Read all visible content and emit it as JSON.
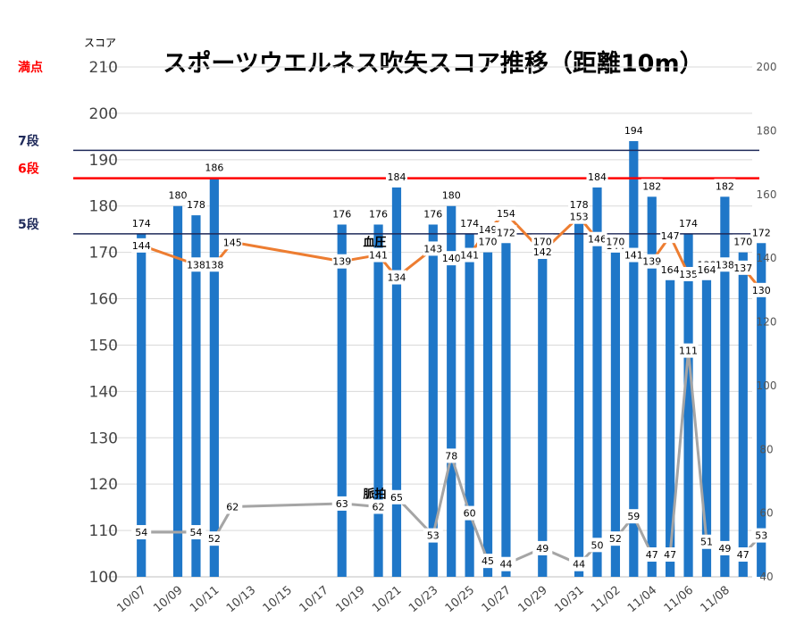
{
  "chart_data": {
    "type": "bar",
    "title": "スポーツウエルネス吹矢スコア推移（距離10m）",
    "y_axis_title": "スコア",
    "ylim": [
      100,
      210
    ],
    "y_ticks": [
      100,
      110,
      120,
      130,
      140,
      150,
      160,
      170,
      180,
      190,
      200,
      210
    ],
    "y2lim": [
      40,
      200
    ],
    "y2_ticks": [
      40,
      60,
      80,
      100,
      120,
      140,
      160,
      180,
      200
    ],
    "x_tick_labels": [
      "10/07",
      "10/09",
      "10/11",
      "10/13",
      "10/15",
      "10/17",
      "10/19",
      "10/21",
      "10/23",
      "10/25",
      "10/27",
      "10/29",
      "10/31",
      "11/02",
      "11/04",
      "11/06",
      "11/08"
    ],
    "x_start": "10/07",
    "grid": true,
    "score_series": {
      "color": "#1f77c8",
      "points": [
        {
          "x": "10/07",
          "value": 174
        },
        {
          "x": "10/09",
          "value": 180
        },
        {
          "x": "10/10",
          "value": 178
        },
        {
          "x": "10/11",
          "value": 186
        },
        {
          "x": "10/18",
          "value": 176
        },
        {
          "x": "10/20",
          "value": 176
        },
        {
          "x": "10/21",
          "value": 184
        },
        {
          "x": "10/23",
          "value": 176
        },
        {
          "x": "10/24",
          "value": 180
        },
        {
          "x": "10/25",
          "value": 174
        },
        {
          "x": "10/26",
          "value": 170
        },
        {
          "x": "10/27",
          "value": 172
        },
        {
          "x": "10/29",
          "value": 170
        },
        {
          "x": "10/31",
          "value": 178
        },
        {
          "x": "11/01",
          "value": 184
        },
        {
          "x": "11/02",
          "value": 170
        },
        {
          "x": "11/03",
          "value": 194
        },
        {
          "x": "11/04",
          "value": 182
        },
        {
          "x": "11/05",
          "value": 164
        },
        {
          "x": "11/06",
          "value": 174
        },
        {
          "x": "11/07",
          "value": 164
        },
        {
          "x": "11/08",
          "value": 182
        },
        {
          "x": "11/09",
          "value": 170
        },
        {
          "x": "11/10",
          "value": 172
        }
      ]
    },
    "blood_pressure_series": {
      "name": "血圧",
      "color": "#ed7d31",
      "points": [
        {
          "x": "10/07",
          "value": 144
        },
        {
          "x": "10/10",
          "value": 138
        },
        {
          "x": "10/11",
          "value": 138
        },
        {
          "x": "10/12",
          "value": 145
        },
        {
          "x": "10/18",
          "value": 139
        },
        {
          "x": "10/20",
          "value": 141
        },
        {
          "x": "10/21",
          "value": 134
        },
        {
          "x": "10/23",
          "value": 143
        },
        {
          "x": "10/24",
          "value": 140
        },
        {
          "x": "10/25",
          "value": 141
        },
        {
          "x": "10/26",
          "value": 149
        },
        {
          "x": "10/27",
          "value": 154
        },
        {
          "x": "10/29",
          "value": 142
        },
        {
          "x": "10/31",
          "value": 153
        },
        {
          "x": "11/01",
          "value": 146
        },
        {
          "x": "11/02",
          "value": 144
        },
        {
          "x": "11/03",
          "value": 141
        },
        {
          "x": "11/04",
          "value": 139
        },
        {
          "x": "11/05",
          "value": 147
        },
        {
          "x": "11/06",
          "value": 135
        },
        {
          "x": "11/07",
          "value": 138
        },
        {
          "x": "11/08",
          "value": 138
        },
        {
          "x": "11/09",
          "value": 137
        },
        {
          "x": "11/10",
          "value": 130
        }
      ]
    },
    "pulse_series": {
      "name": "脈拍",
      "color": "#a5a5a5",
      "points": [
        {
          "x": "10/07",
          "value": 54
        },
        {
          "x": "10/10",
          "value": 54
        },
        {
          "x": "10/11",
          "value": 52
        },
        {
          "x": "10/12",
          "value": 62
        },
        {
          "x": "10/18",
          "value": 63
        },
        {
          "x": "10/20",
          "value": 62
        },
        {
          "x": "10/21",
          "value": 65
        },
        {
          "x": "10/23",
          "value": 53
        },
        {
          "x": "10/24",
          "value": 78
        },
        {
          "x": "10/25",
          "value": 60
        },
        {
          "x": "10/26",
          "value": 45
        },
        {
          "x": "10/27",
          "value": 44
        },
        {
          "x": "10/29",
          "value": 49
        },
        {
          "x": "10/31",
          "value": 44
        },
        {
          "x": "11/01",
          "value": 50
        },
        {
          "x": "11/02",
          "value": 52
        },
        {
          "x": "11/03",
          "value": 59
        },
        {
          "x": "11/04",
          "value": 47
        },
        {
          "x": "11/05",
          "value": 47
        },
        {
          "x": "11/06",
          "value": 111
        },
        {
          "x": "11/07",
          "value": 51
        },
        {
          "x": "11/08",
          "value": 49
        },
        {
          "x": "11/09",
          "value": 47
        },
        {
          "x": "11/10",
          "value": 53
        }
      ]
    },
    "reference_lines": [
      {
        "label": "満点",
        "value": 210,
        "color": "#ff0000",
        "style": "none"
      },
      {
        "label": "7段",
        "value": 192,
        "color": "#1f2a5a",
        "style": "solid"
      },
      {
        "label": "6段",
        "value": 186,
        "color": "#ff0000",
        "style": "solid"
      },
      {
        "label": "5段",
        "value": 174,
        "color": "#1f2a5a",
        "style": "solid"
      }
    ]
  }
}
